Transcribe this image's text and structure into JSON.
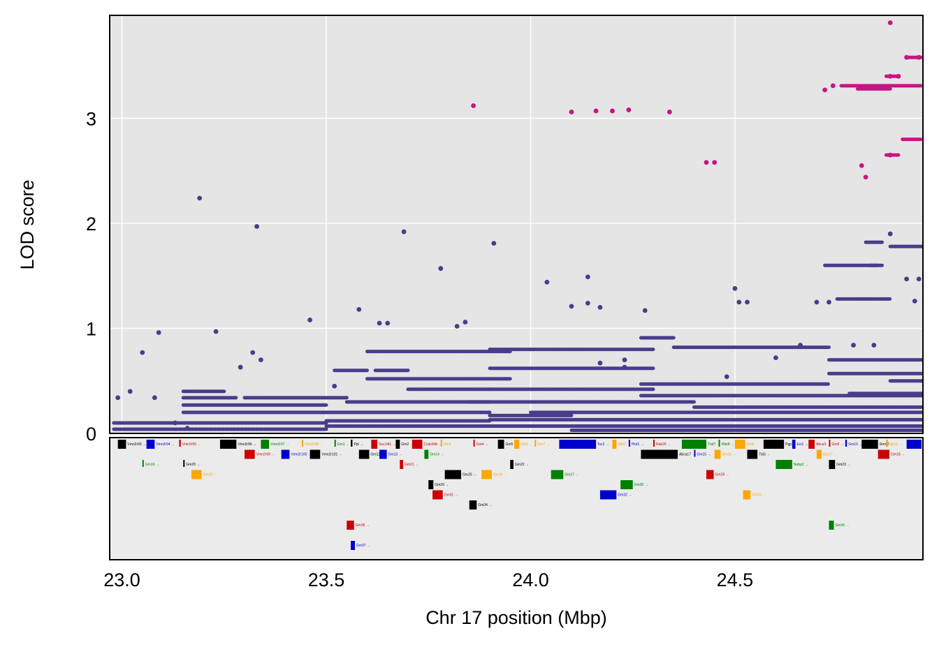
{
  "chart_data": {
    "type": "scatter",
    "xlabel": "Chr 17 position (Mbp)",
    "ylabel": "LOD score",
    "x_ticks": [
      "23.0",
      "23.5",
      "24.0",
      "24.5"
    ],
    "y_ticks": [
      "0",
      "1",
      "2",
      "3"
    ],
    "xlim": [
      22.97,
      24.96
    ],
    "ylim": [
      0,
      3.98
    ],
    "grid": true,
    "colors": {
      "panel_bg": "#e5e5e5",
      "gene_panel_bg": "#ebebeb",
      "gridline": "#ffffff",
      "series_main": "#483d8b",
      "series_high": "#c71585"
    },
    "series": [
      {
        "color": "#483d8b",
        "points": [
          [
            22.99,
            0.34
          ],
          [
            23.02,
            0.4
          ],
          [
            23.05,
            0.77
          ],
          [
            23.08,
            0.34
          ],
          [
            23.09,
            0.96
          ],
          [
            23.13,
            0.1
          ],
          [
            23.16,
            0.05
          ],
          [
            23.19,
            2.24
          ],
          [
            23.23,
            0.97
          ],
          [
            23.29,
            0.63
          ],
          [
            23.32,
            0.77
          ],
          [
            23.33,
            1.97
          ],
          [
            23.34,
            0.7
          ],
          [
            23.46,
            1.08
          ],
          [
            23.52,
            0.45
          ],
          [
            23.58,
            1.18
          ],
          [
            23.63,
            1.05
          ],
          [
            23.65,
            1.05
          ],
          [
            23.69,
            1.92
          ],
          [
            23.78,
            1.57
          ],
          [
            23.82,
            1.02
          ],
          [
            23.84,
            1.06
          ],
          [
            23.91,
            1.81
          ],
          [
            24.04,
            1.44
          ],
          [
            24.1,
            1.21
          ],
          [
            24.14,
            1.49
          ],
          [
            24.14,
            1.24
          ],
          [
            24.17,
            1.2
          ],
          [
            24.17,
            0.67
          ],
          [
            24.23,
            0.7
          ],
          [
            24.23,
            0.63
          ],
          [
            24.28,
            1.17
          ],
          [
            24.48,
            0.54
          ],
          [
            24.5,
            1.38
          ],
          [
            24.51,
            1.25
          ],
          [
            24.53,
            1.25
          ],
          [
            24.6,
            0.72
          ],
          [
            24.66,
            0.84
          ],
          [
            24.7,
            1.25
          ],
          [
            24.73,
            1.25
          ],
          [
            24.79,
            0.84
          ],
          [
            24.84,
            0.84
          ],
          [
            24.88,
            1.9
          ],
          [
            24.92,
            1.47
          ],
          [
            24.94,
            1.26
          ],
          [
            24.95,
            1.47
          ]
        ],
        "segments": [
          [
            22.98,
            23.5,
            0.04
          ],
          [
            22.98,
            23.5,
            0.1
          ],
          [
            23.15,
            23.5,
            0.2
          ],
          [
            23.15,
            23.5,
            0.27
          ],
          [
            23.15,
            23.28,
            0.34
          ],
          [
            23.3,
            23.55,
            0.34
          ],
          [
            23.15,
            23.25,
            0.4
          ],
          [
            23.5,
            23.9,
            0.07
          ],
          [
            23.5,
            23.9,
            0.12
          ],
          [
            23.5,
            23.9,
            0.2
          ],
          [
            23.55,
            23.9,
            0.3
          ],
          [
            23.52,
            23.6,
            0.6
          ],
          [
            23.6,
            23.95,
            0.52
          ],
          [
            23.62,
            23.7,
            0.6
          ],
          [
            23.6,
            23.95,
            0.78
          ],
          [
            23.7,
            23.9,
            0.42
          ],
          [
            23.9,
            24.3,
            0.8
          ],
          [
            23.9,
            24.3,
            0.62
          ],
          [
            23.9,
            24.3,
            0.42
          ],
          [
            23.85,
            24.4,
            0.3
          ],
          [
            23.9,
            24.1,
            0.17
          ],
          [
            23.9,
            24.96,
            0.13
          ],
          [
            23.9,
            24.96,
            0.07
          ],
          [
            24.0,
            24.96,
            0.2
          ],
          [
            24.1,
            24.96,
            0.03
          ],
          [
            24.27,
            24.35,
            0.91
          ],
          [
            24.35,
            24.73,
            0.82
          ],
          [
            24.27,
            24.73,
            0.47
          ],
          [
            24.27,
            24.96,
            0.36
          ],
          [
            24.4,
            24.96,
            0.25
          ],
          [
            24.73,
            24.96,
            0.7
          ],
          [
            24.73,
            24.96,
            0.57
          ],
          [
            24.78,
            24.96,
            0.38
          ],
          [
            24.88,
            24.96,
            0.5
          ],
          [
            24.75,
            24.88,
            1.28
          ],
          [
            24.83,
            24.86,
            1.6
          ],
          [
            24.72,
            24.85,
            1.6
          ],
          [
            24.88,
            24.96,
            1.78
          ],
          [
            24.82,
            24.86,
            1.82
          ]
        ]
      },
      {
        "color": "#c71585",
        "points": [
          [
            23.86,
            3.12
          ],
          [
            24.1,
            3.06
          ],
          [
            24.16,
            3.07
          ],
          [
            24.2,
            3.07
          ],
          [
            24.24,
            3.08
          ],
          [
            24.34,
            3.06
          ],
          [
            24.43,
            2.58
          ],
          [
            24.45,
            2.58
          ],
          [
            24.72,
            3.27
          ],
          [
            24.74,
            3.31
          ],
          [
            24.81,
            2.55
          ],
          [
            24.82,
            2.44
          ],
          [
            24.88,
            3.91
          ],
          [
            24.88,
            3.4
          ],
          [
            24.88,
            2.65
          ],
          [
            24.9,
            3.4
          ],
          [
            24.92,
            3.58
          ],
          [
            24.95,
            3.58
          ]
        ],
        "segments": [
          [
            24.76,
            24.96,
            3.31
          ],
          [
            24.8,
            24.88,
            3.28
          ],
          [
            24.87,
            24.9,
            2.65
          ],
          [
            24.91,
            24.96,
            2.8
          ],
          [
            24.92,
            24.96,
            3.58
          ],
          [
            24.87,
            24.9,
            3.4
          ]
        ]
      }
    ],
    "genes": [
      {
        "x": 22.99,
        "w": 0.02,
        "row": 0,
        "c": "#000000",
        "label": "Vmn2r93"
      },
      {
        "x": 23.06,
        "w": 0.02,
        "row": 0,
        "c": "#0000cd",
        "label": "Vmn2r94"
      },
      {
        "x": 23.14,
        "w": 0.004,
        "row": 0,
        "c": "#cc0000",
        "label": "Vmn2r95"
      },
      {
        "x": 23.24,
        "w": 0.04,
        "row": 0,
        "c": "#000000",
        "label": "Vmn2r96"
      },
      {
        "x": 23.34,
        "w": 0.02,
        "row": 0,
        "c": "#008000",
        "label": "Vmn2r97"
      },
      {
        "x": 23.44,
        "w": 0.003,
        "row": 0,
        "c": "#ffa500",
        "label": "Vmn2r98"
      },
      {
        "x": 23.52,
        "w": 0.003,
        "row": 0,
        "c": "#008000",
        "label": "Gm1"
      },
      {
        "x": 23.56,
        "w": 0.004,
        "row": 0,
        "c": "#000000",
        "label": "Ppl"
      },
      {
        "x": 23.61,
        "w": 0.015,
        "row": 0,
        "c": "#cc0000",
        "label": "Sec14l1"
      },
      {
        "x": 23.67,
        "w": 0.01,
        "row": 0,
        "c": "#000000",
        "label": "Gm2"
      },
      {
        "x": 23.71,
        "w": 0.025,
        "row": 0,
        "c": "#cc0000",
        "label": "Ccdc64b"
      },
      {
        "x": 23.78,
        "w": 0.003,
        "row": 0,
        "c": "#ffa500",
        "label": "Gm3"
      },
      {
        "x": 23.86,
        "w": 0.003,
        "row": 0,
        "c": "#cc0000",
        "label": "Gm4"
      },
      {
        "x": 23.92,
        "w": 0.015,
        "row": 0,
        "c": "#000000",
        "label": "Gm5"
      },
      {
        "x": 23.96,
        "w": 0.012,
        "row": 0,
        "c": "#ffa500",
        "label": "Gm6"
      },
      {
        "x": 24.01,
        "w": 0.003,
        "row": 0,
        "c": "#ffa500",
        "label": "Gm7"
      },
      {
        "x": 24.07,
        "w": 0.09,
        "row": 0,
        "c": "#0000cd",
        "label": "Tsc2"
      },
      {
        "x": 24.2,
        "w": 0.01,
        "row": 0,
        "c": "#ffa500",
        "label": "Nthl1"
      },
      {
        "x": 24.24,
        "w": 0.003,
        "row": 0,
        "c": "#0000cd",
        "label": "Pkd1"
      },
      {
        "x": 24.3,
        "w": 0.003,
        "row": 0,
        "c": "#cc0000",
        "label": "Rab26"
      },
      {
        "x": 24.37,
        "w": 0.06,
        "row": 0,
        "c": "#008000",
        "label": "Traf7"
      },
      {
        "x": 24.46,
        "w": 0.003,
        "row": 0,
        "c": "#008000",
        "label": "Mlst8"
      },
      {
        "x": 24.5,
        "w": 0.025,
        "row": 0,
        "c": "#ffa500",
        "label": "Gm8"
      },
      {
        "x": 24.57,
        "w": 0.05,
        "row": 0,
        "c": "#000000",
        "label": "Pgp"
      },
      {
        "x": 24.64,
        "w": 0.008,
        "row": 0,
        "c": "#0000cd",
        "label": "Eci1"
      },
      {
        "x": 24.68,
        "w": 0.015,
        "row": 0,
        "c": "#cc0000",
        "label": "Abca3"
      },
      {
        "x": 24.73,
        "w": 0.003,
        "row": 0,
        "c": "#cc0000",
        "label": "Gm9"
      },
      {
        "x": 24.77,
        "w": 0.004,
        "row": 0,
        "c": "#0000cd",
        "label": "Gm10"
      },
      {
        "x": 24.81,
        "w": 0.04,
        "row": 0,
        "c": "#000000",
        "label": "Srrm2"
      },
      {
        "x": 24.87,
        "w": 0.004,
        "row": 0,
        "c": "#ffa500",
        "label": "Gm11"
      },
      {
        "x": 24.92,
        "w": 0.04,
        "row": 0,
        "c": "#0000cd",
        "label": "Prss41"
      },
      {
        "x": 23.3,
        "w": 0.025,
        "row": 1,
        "c": "#cc0000",
        "label": "Vmn2r99"
      },
      {
        "x": 23.39,
        "w": 0.02,
        "row": 1,
        "c": "#0000cd",
        "label": "Vmn2r100"
      },
      {
        "x": 23.46,
        "w": 0.025,
        "row": 1,
        "c": "#000000",
        "label": "Vmn2r101"
      },
      {
        "x": 23.58,
        "w": 0.025,
        "row": 1,
        "c": "#000000",
        "label": "Gm12"
      },
      {
        "x": 23.63,
        "w": 0.018,
        "row": 1,
        "c": "#0000cd",
        "label": "Gm13"
      },
      {
        "x": 23.74,
        "w": 0.01,
        "row": 1,
        "c": "#008000",
        "label": "Gm14"
      },
      {
        "x": 24.27,
        "w": 0.09,
        "row": 1,
        "c": "#000000",
        "label": "Abca17"
      },
      {
        "x": 24.4,
        "w": 0.003,
        "row": 1,
        "c": "#0000cd",
        "label": "Gm15"
      },
      {
        "x": 24.45,
        "w": 0.015,
        "row": 1,
        "c": "#ffa500",
        "label": "Gm16"
      },
      {
        "x": 24.53,
        "w": 0.025,
        "row": 1,
        "c": "#000000",
        "label": "Tbl3"
      },
      {
        "x": 24.7,
        "w": 0.012,
        "row": 1,
        "c": "#ffa500",
        "label": "Gm17"
      },
      {
        "x": 24.85,
        "w": 0.028,
        "row": 1,
        "c": "#cc0000",
        "label": "Gm18"
      },
      {
        "x": 23.05,
        "w": 0.003,
        "row": 2,
        "c": "#008000",
        "label": "Gm19"
      },
      {
        "x": 23.15,
        "w": 0.003,
        "row": 2,
        "c": "#000000",
        "label": "Gm20"
      },
      {
        "x": 23.68,
        "w": 0.008,
        "row": 2,
        "c": "#cc0000",
        "label": "Gm21"
      },
      {
        "x": 23.95,
        "w": 0.008,
        "row": 2,
        "c": "#000000",
        "label": "Gm22"
      },
      {
        "x": 24.6,
        "w": 0.04,
        "row": 2,
        "c": "#008000",
        "label": "Nubp2"
      },
      {
        "x": 24.73,
        "w": 0.015,
        "row": 2,
        "c": "#000000",
        "label": "Gm23"
      },
      {
        "x": 23.17,
        "w": 0.025,
        "row": 3,
        "c": "#ffa500",
        "label": "Gm24"
      },
      {
        "x": 23.79,
        "w": 0.04,
        "row": 3,
        "c": "#000000",
        "label": "Gm25"
      },
      {
        "x": 23.88,
        "w": 0.025,
        "row": 3,
        "c": "#ffa500",
        "label": "Gm26"
      },
      {
        "x": 24.05,
        "w": 0.03,
        "row": 3,
        "c": "#008000",
        "label": "Gm27"
      },
      {
        "x": 24.43,
        "w": 0.018,
        "row": 3,
        "c": "#cc0000",
        "label": "Gm28"
      },
      {
        "x": 23.75,
        "w": 0.012,
        "row": 4,
        "c": "#000000",
        "label": "Gm29"
      },
      {
        "x": 24.22,
        "w": 0.03,
        "row": 4,
        "c": "#008000",
        "label": "Gm30"
      },
      {
        "x": 23.76,
        "w": 0.025,
        "row": 5,
        "c": "#cc0000",
        "label": "Gm31"
      },
      {
        "x": 24.17,
        "w": 0.04,
        "row": 5,
        "c": "#0000cd",
        "label": "Gm32"
      },
      {
        "x": 24.52,
        "w": 0.018,
        "row": 5,
        "c": "#ffa500",
        "label": "Gm33"
      },
      {
        "x": 23.85,
        "w": 0.018,
        "row": 6,
        "c": "#000000",
        "label": "Gm34"
      },
      {
        "x": 23.55,
        "w": 0.018,
        "row": 8,
        "c": "#cc0000",
        "label": "Gm35"
      },
      {
        "x": 24.73,
        "w": 0.012,
        "row": 8,
        "c": "#008000",
        "label": "Gm36"
      },
      {
        "x": 23.56,
        "w": 0.01,
        "row": 10,
        "c": "#0000cd",
        "label": "Gm37"
      }
    ]
  }
}
